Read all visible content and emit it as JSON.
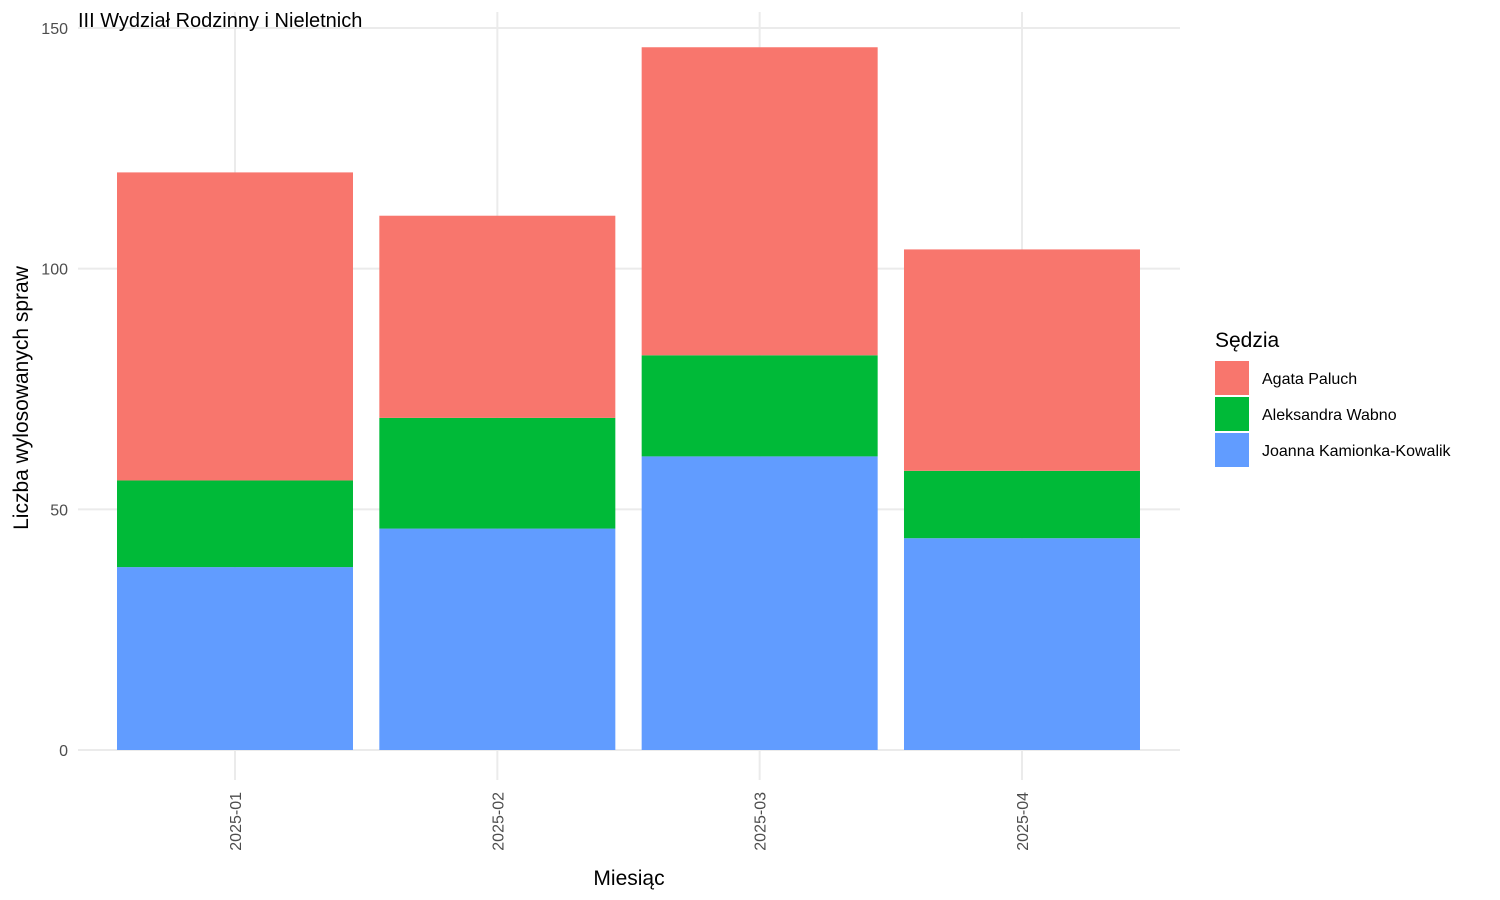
{
  "chart_data": {
    "type": "bar",
    "stacked": true,
    "title": "III Wydział Rodzinny i Nieletnich",
    "xlabel": "Miesiąc",
    "ylabel": "Liczba wylosowanych spraw",
    "categories": [
      "2025-01",
      "2025-02",
      "2025-03",
      "2025-04"
    ],
    "ylim": [
      0,
      150
    ],
    "yticks": [
      0,
      50,
      100,
      150
    ],
    "grid": true,
    "legend": {
      "title": "Sędzia",
      "placement": "right"
    },
    "series": [
      {
        "name": "Joanna Kamionka-Kowalik",
        "color": "#619CFF",
        "values": [
          38,
          46,
          61,
          44
        ]
      },
      {
        "name": "Aleksandra Wabno",
        "color": "#00BA38",
        "values": [
          18,
          23,
          21,
          14
        ]
      },
      {
        "name": "Agata Paluch",
        "color": "#F8766D",
        "values": [
          64,
          42,
          64,
          46
        ]
      }
    ],
    "legend_order": [
      "Agata Paluch",
      "Aleksandra Wabno",
      "Joanna Kamionka-Kowalik"
    ]
  }
}
